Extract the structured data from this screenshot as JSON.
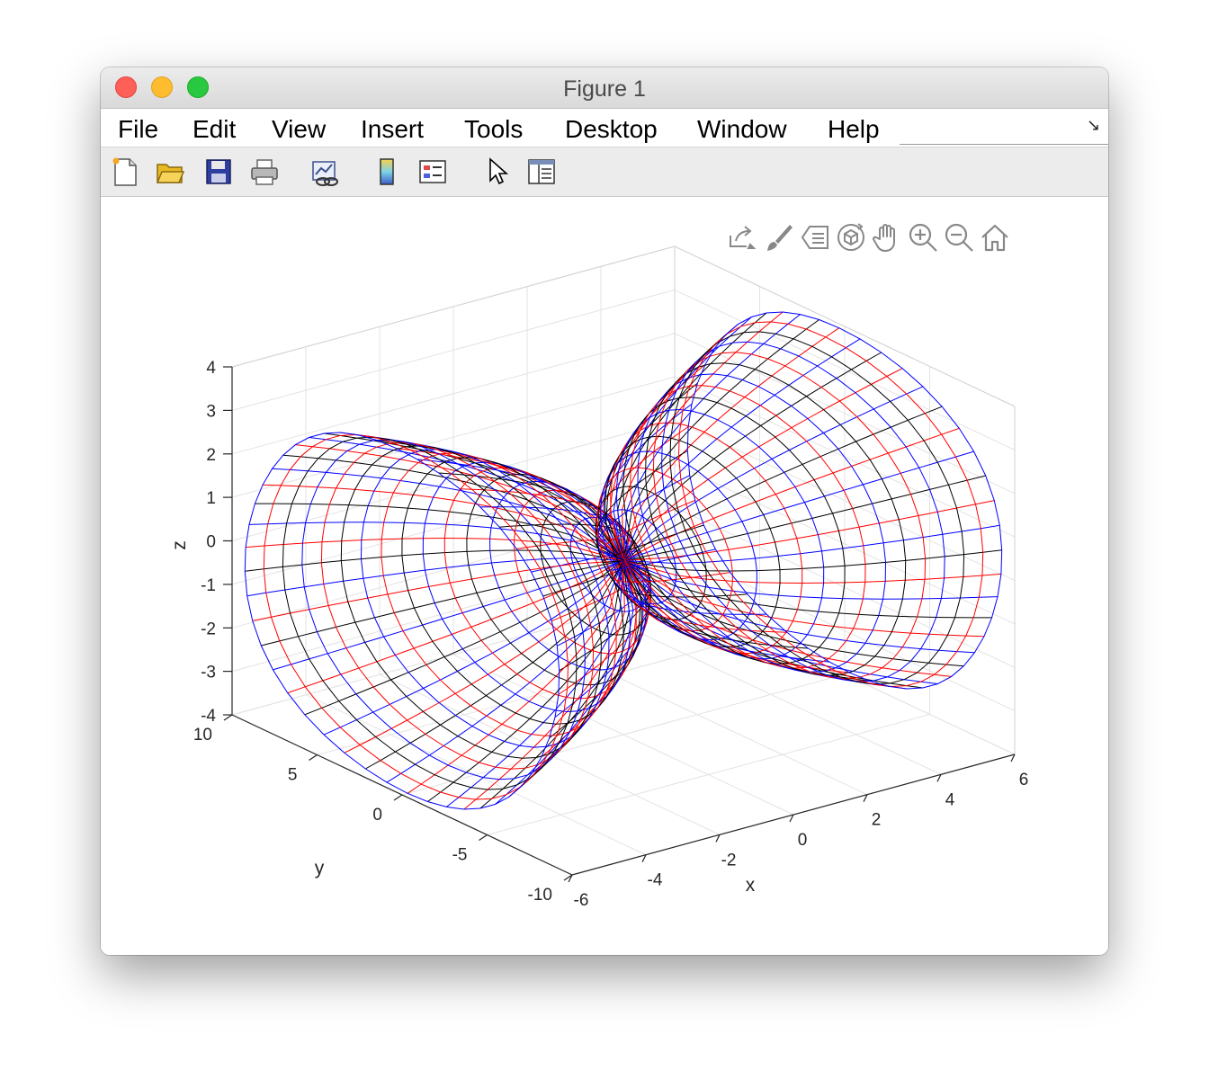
{
  "window": {
    "title": "Figure 1"
  },
  "menu": [
    "File",
    "Edit",
    "View",
    "Insert",
    "Tools",
    "Desktop",
    "Window",
    "Help"
  ],
  "toolbar_icons": [
    "new-figure-icon",
    "open-file-icon",
    "save-icon",
    "print-icon",
    "link-plot-icon",
    "colorbar-icon",
    "legend-icon",
    "pointer-icon",
    "property-inspector-icon"
  ],
  "axes_toolbar_icons": [
    "export-icon",
    "brush-icon",
    "datatip-icon",
    "rotate-3d-icon",
    "pan-icon",
    "zoom-in-icon",
    "zoom-out-icon",
    "home-icon"
  ],
  "colors": {
    "red": "#ff0000",
    "blue": "#0000ff",
    "black": "#000000"
  },
  "chart_data": {
    "type": "3d-surface-mesh",
    "xlabel": "x",
    "ylabel": "y",
    "zlabel": "z",
    "xlim": [
      -6,
      6
    ],
    "ylim": [
      -10,
      10
    ],
    "zlim": [
      -4,
      4
    ],
    "xticks": [
      "-6",
      "-4",
      "-2",
      "0",
      "2",
      "4",
      "6"
    ],
    "yticks": [
      "-10",
      "-5",
      "0",
      "5",
      "10"
    ],
    "zticks": [
      "-4",
      "-3",
      "-2",
      "-1",
      "0",
      "1",
      "2",
      "3",
      "4"
    ],
    "grid": true,
    "series": [
      {
        "x_range": [
          -6,
          0
        ],
        "radius_max": 4,
        "line_colors": [
          "red",
          "blue",
          "black"
        ]
      },
      {
        "x_range": [
          0,
          6
        ],
        "radius_max": 4,
        "line_colors": [
          "red",
          "blue",
          "black"
        ]
      }
    ]
  }
}
